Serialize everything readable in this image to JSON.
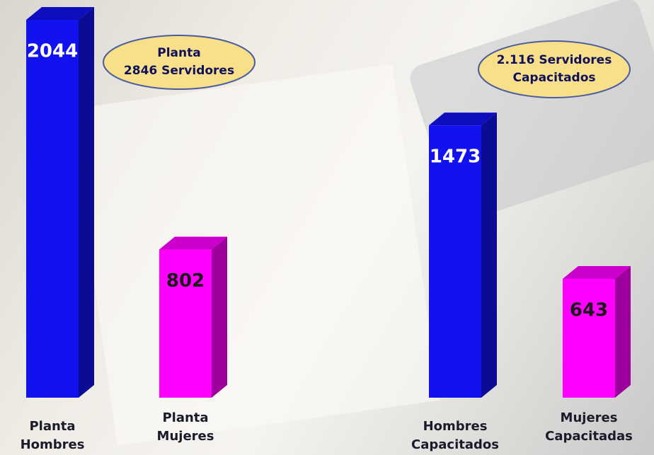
{
  "chart_data": {
    "type": "bar3d",
    "categories": [
      "Planta\nHombres",
      "Planta\nMujeres",
      "Hombres\nCapacitados",
      "Mujeres\nCapacitadas"
    ],
    "values": [
      2044,
      802,
      1473,
      643
    ],
    "colors": [
      "#1212ee",
      "#ff00ff",
      "#1212ee",
      "#ff00ff"
    ],
    "annotations": [
      "Planta\n2846 Servidores",
      "2.116 Servidores\nCapacitados"
    ]
  }
}
